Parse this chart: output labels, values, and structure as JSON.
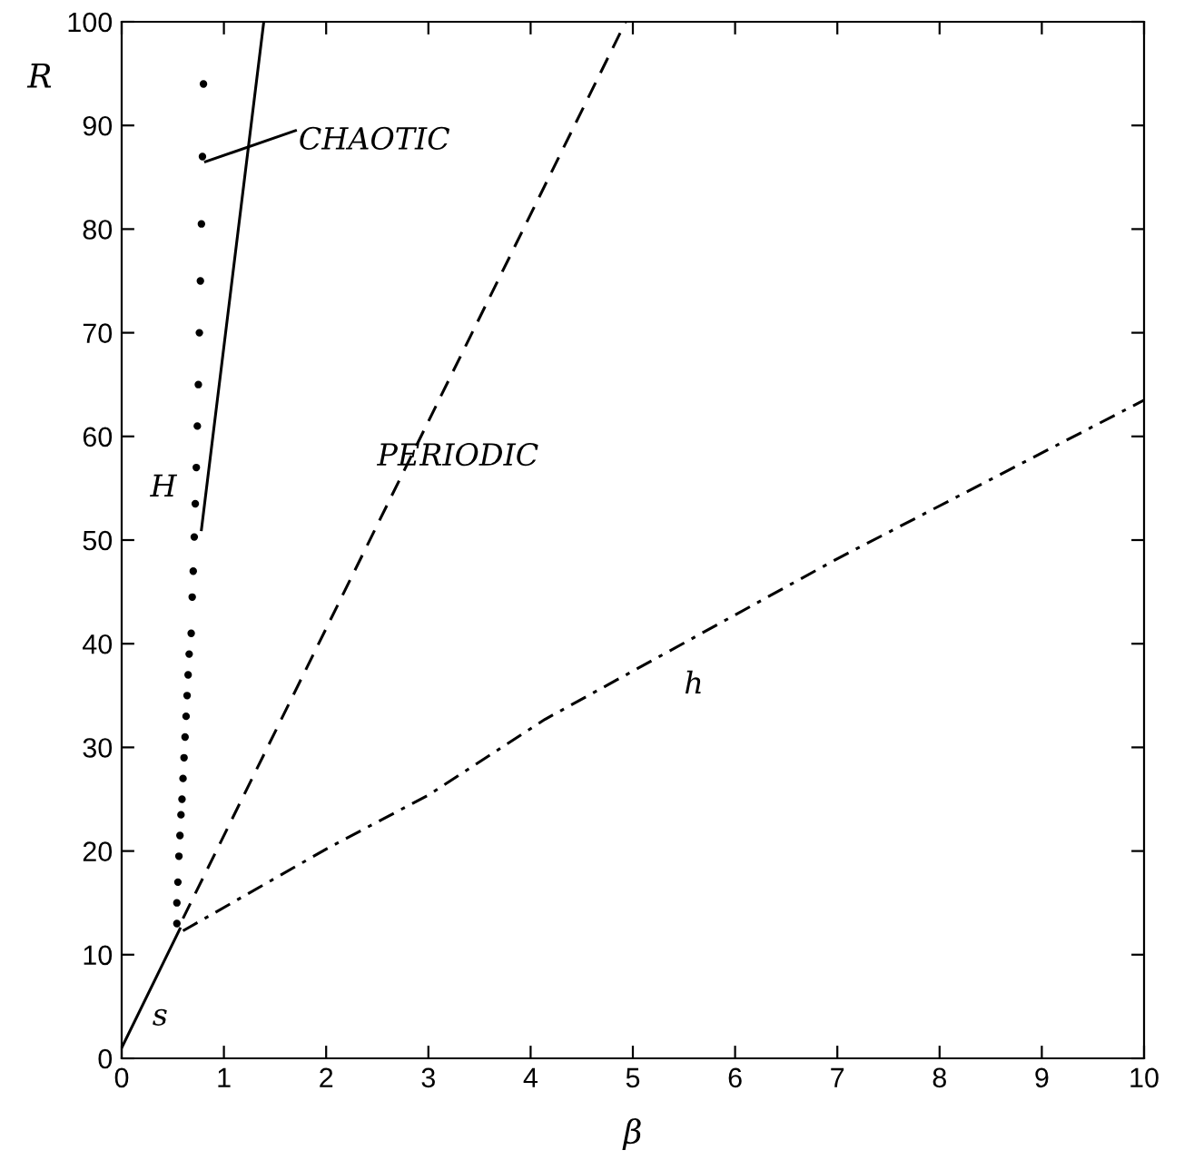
{
  "chart_data": {
    "type": "line",
    "xlabel": "β",
    "ylabel": "R",
    "xlim": [
      0,
      10
    ],
    "ylim": [
      0,
      100
    ],
    "xticks": [
      0,
      1,
      2,
      3,
      4,
      5,
      6,
      7,
      8,
      9,
      10
    ],
    "yticks": [
      0,
      10,
      20,
      30,
      40,
      50,
      60,
      70,
      80,
      90,
      100
    ],
    "grid": false,
    "series": [
      {
        "color": "#000000",
        "line_style": "solid",
        "x": [
          0,
          0.57
        ],
        "values": [
          1,
          12.5
        ]
      },
      {
        "color": "#000000",
        "line_style": "solid",
        "x": [
          0.78,
          1.39
        ],
        "values": [
          51,
          100
        ]
      },
      {
        "color": "#000000",
        "line_style": "dashed",
        "x": [
          0.6,
          4.93
        ],
        "values": [
          13.5,
          100
        ]
      },
      {
        "color": "#000000",
        "line_style": "dashdot",
        "x": [
          0.6,
          2.02,
          3,
          4.14,
          7,
          10
        ],
        "values": [
          12.3,
          20.3,
          25.4,
          32.7,
          48.2,
          63.5
        ]
      },
      {
        "type": "scatter",
        "color": "#000000",
        "marker": "circle",
        "x": [
          0.54,
          0.54,
          0.55,
          0.56,
          0.57,
          0.58,
          0.59,
          0.6,
          0.61,
          0.62,
          0.63,
          0.64,
          0.65,
          0.66,
          0.68,
          0.69,
          0.7,
          0.71,
          0.72,
          0.73,
          0.74,
          0.75,
          0.76,
          0.77,
          0.78,
          0.79,
          0.8
        ],
        "values": [
          13,
          15,
          17,
          19.5,
          21.5,
          23.5,
          25,
          27,
          29,
          31,
          33,
          35,
          37,
          39,
          41,
          44.5,
          47,
          50.3,
          53.5,
          57,
          61,
          65,
          70,
          75,
          80.5,
          87,
          94
        ]
      },
      {
        "color": "#000000",
        "line_style": "solid",
        "x": [
          0.82,
          1.7
        ],
        "values": [
          86.5,
          89.5
        ]
      }
    ],
    "annotations": [
      "CHAOTIC",
      "PERIODIC",
      "H",
      "s",
      "h"
    ]
  }
}
